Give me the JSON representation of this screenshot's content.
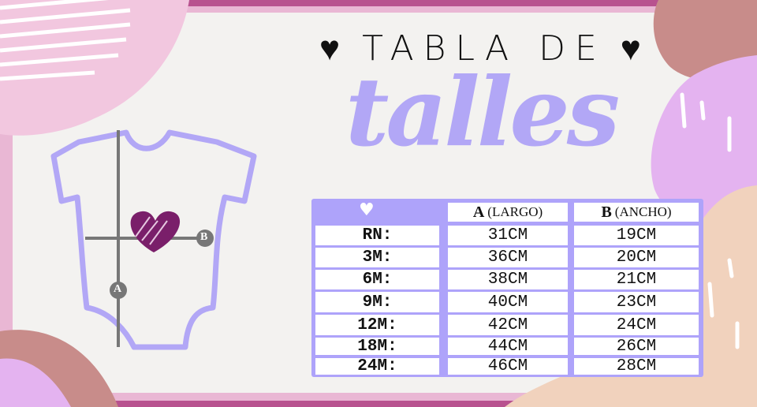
{
  "title": {
    "heart_left": "♥",
    "text": "TABLA DE",
    "heart_right": "♥",
    "script": "talles"
  },
  "diagram": {
    "marker_a": "A",
    "marker_b": "B"
  },
  "table": {
    "header_icon": "♥",
    "columns": [
      {
        "letter": "A",
        "label": "(LARGO)"
      },
      {
        "letter": "B",
        "label": "(ANCHO)"
      }
    ],
    "rows": [
      {
        "size": "RN:",
        "a": "31CM",
        "b": "19CM"
      },
      {
        "size": "3M:",
        "a": "36CM",
        "b": "20CM"
      },
      {
        "size": "6M:",
        "a": "38CM",
        "b": "21CM"
      },
      {
        "size": "9M:",
        "a": "40CM",
        "b": "23CM"
      },
      {
        "size": "12M:",
        "a": "42CM",
        "b": "24CM"
      },
      {
        "size": "18M:",
        "a": "44CM",
        "b": "26CM"
      },
      {
        "size": "24M:",
        "a": "46CM",
        "b": "28CM"
      }
    ]
  },
  "colors": {
    "frame": "#b8528f",
    "canvas": "#f3f2f0",
    "lavender": "#aea3fa",
    "heart": "#7a1f6a"
  }
}
